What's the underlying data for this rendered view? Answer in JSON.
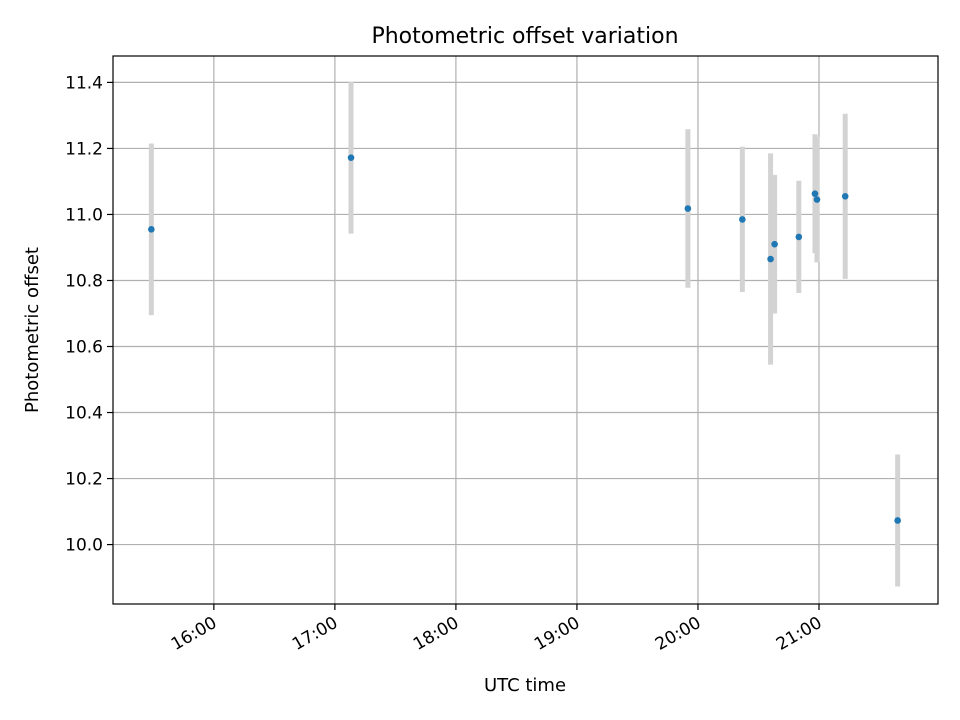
{
  "chart_data": {
    "type": "scatter",
    "title": "Photometric offset variation",
    "xlabel": "UTC time",
    "ylabel": "Photometric offset",
    "x_unit": "time of day (UTC)",
    "xlim": [
      "15:10",
      "21:59"
    ],
    "ylim": [
      9.82,
      11.48
    ],
    "x_ticks": [
      "16:00",
      "17:00",
      "18:00",
      "19:00",
      "20:00",
      "21:00"
    ],
    "y_ticks": [
      10.0,
      10.2,
      10.4,
      10.6,
      10.8,
      11.0,
      11.2,
      11.4
    ],
    "y_tick_labels": [
      "10.0",
      "10.2",
      "10.4",
      "10.6",
      "10.8",
      "11.0",
      "11.2",
      "11.4"
    ],
    "grid": true,
    "colors": {
      "marker": "#1f77b4",
      "errorbar": "#d3d3d3"
    },
    "points": [
      {
        "x": "15:29",
        "y": 10.955,
        "err": 0.26
      },
      {
        "x": "17:08",
        "y": 11.172,
        "err": 0.23
      },
      {
        "x": "19:55",
        "y": 11.018,
        "err": 0.24
      },
      {
        "x": "20:22",
        "y": 10.985,
        "err": 0.22
      },
      {
        "x": "20:36",
        "y": 10.865,
        "err": 0.32
      },
      {
        "x": "20:38",
        "y": 10.91,
        "err": 0.21
      },
      {
        "x": "20:50",
        "y": 10.932,
        "err": 0.17
      },
      {
        "x": "20:58",
        "y": 11.063,
        "err": 0.18
      },
      {
        "x": "20:59",
        "y": 11.045,
        "err": 0.19
      },
      {
        "x": "21:13",
        "y": 11.055,
        "err": 0.25
      },
      {
        "x": "21:39",
        "y": 10.073,
        "err": 0.2
      }
    ]
  }
}
